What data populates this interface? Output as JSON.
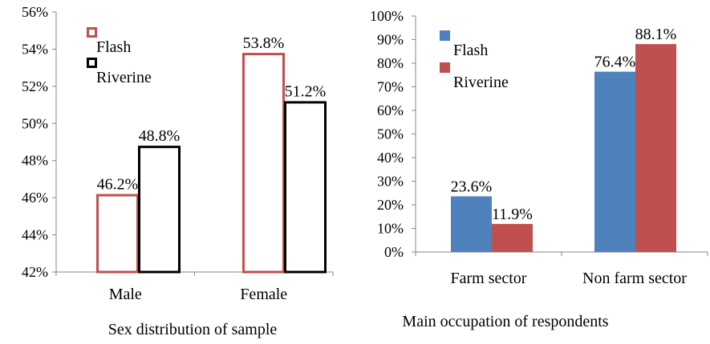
{
  "chart_data": [
    {
      "type": "bar",
      "title": "",
      "xlabel": "Sex distribution of sample",
      "ylabel": "",
      "categories": [
        "Male",
        "Female"
      ],
      "series": [
        {
          "name": "Flash",
          "values": [
            46.2,
            53.8
          ],
          "labels": [
            "46.2%",
            "53.8%"
          ],
          "style": "outline",
          "color": "#c0504d"
        },
        {
          "name": "Riverine",
          "values": [
            48.8,
            51.2
          ],
          "labels": [
            "48.8%",
            "51.2%"
          ],
          "style": "outline",
          "color": "#000000"
        }
      ],
      "ylim": [
        42,
        56
      ],
      "yticks": [
        "42%",
        "44%",
        "46%",
        "48%",
        "50%",
        "52%",
        "54%",
        "56%"
      ],
      "grid": false,
      "legend_position": "top-left"
    },
    {
      "type": "bar",
      "title": "",
      "xlabel": "Main occupation of respondents",
      "ylabel": "",
      "categories": [
        "Farm sector",
        "Non farm sector"
      ],
      "series": [
        {
          "name": "Flash",
          "values": [
            23.6,
            76.4
          ],
          "labels": [
            "23.6%",
            "76.4%"
          ],
          "style": "filled",
          "color": "#4f81bd"
        },
        {
          "name": "Riverine",
          "values": [
            11.9,
            88.1
          ],
          "labels": [
            "11.9%",
            "88.1%"
          ],
          "style": "filled",
          "color": "#c0504d"
        }
      ],
      "ylim": [
        0,
        100
      ],
      "yticks": [
        "0%",
        "10%",
        "20%",
        "30%",
        "40%",
        "50%",
        "60%",
        "70%",
        "80%",
        "90%",
        "100%"
      ],
      "grid": false,
      "legend_position": "top-left"
    }
  ]
}
